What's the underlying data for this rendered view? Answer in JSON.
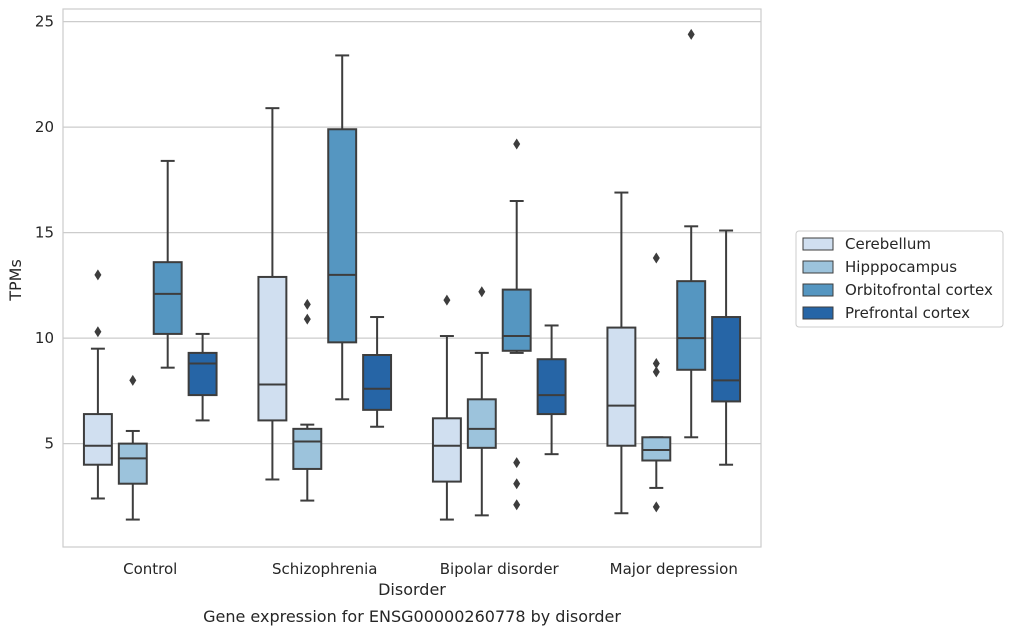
{
  "chart_data": {
    "type": "boxplot",
    "caption": "Gene expression for ENSG00000260778 by disorder",
    "xlabel": "Disorder",
    "ylabel": "TPMs",
    "ylim": [
      0.1,
      25.6
    ],
    "yticks": [
      5,
      10,
      15,
      20,
      25
    ],
    "grid": "horizontal",
    "legend_position": "right",
    "categories": [
      "Control",
      "Schizophrenia",
      "Bipolar disorder",
      "Major depression"
    ],
    "series": [
      {
        "name": "Cerebellum",
        "color": "#d0dff0",
        "boxes": [
          {
            "whisker_low": 2.4,
            "q1": 4.0,
            "median": 4.9,
            "q3": 6.4,
            "whisker_high": 9.5,
            "outliers": [
              10.3,
              13.0
            ]
          },
          {
            "whisker_low": 3.3,
            "q1": 6.1,
            "median": 7.8,
            "q3": 12.9,
            "whisker_high": 20.9,
            "outliers": []
          },
          {
            "whisker_low": 1.4,
            "q1": 3.2,
            "median": 4.9,
            "q3": 6.2,
            "whisker_high": 10.1,
            "outliers": [
              11.8
            ]
          },
          {
            "whisker_low": 1.7,
            "q1": 4.9,
            "median": 6.8,
            "q3": 10.5,
            "whisker_high": 16.9,
            "outliers": []
          }
        ]
      },
      {
        "name": "Hipppocampus",
        "color": "#9cc3dc",
        "boxes": [
          {
            "whisker_low": 1.4,
            "q1": 3.1,
            "median": 4.3,
            "q3": 5.0,
            "whisker_high": 5.6,
            "outliers": [
              8.0
            ]
          },
          {
            "whisker_low": 2.3,
            "q1": 3.8,
            "median": 5.1,
            "q3": 5.7,
            "whisker_high": 5.9,
            "outliers": [
              10.9,
              11.6
            ]
          },
          {
            "whisker_low": 1.6,
            "q1": 4.8,
            "median": 5.7,
            "q3": 7.1,
            "whisker_high": 9.3,
            "outliers": [
              12.2
            ]
          },
          {
            "whisker_low": 2.9,
            "q1": 4.2,
            "median": 4.7,
            "q3": 5.3,
            "whisker_high": 5.3,
            "outliers": [
              2.0,
              8.4,
              8.8,
              13.8
            ]
          }
        ]
      },
      {
        "name": "Orbitofrontal cortex",
        "color": "#5596c1",
        "boxes": [
          {
            "whisker_low": 8.6,
            "q1": 10.2,
            "median": 12.1,
            "q3": 13.6,
            "whisker_high": 18.4,
            "outliers": []
          },
          {
            "whisker_low": 7.1,
            "q1": 9.8,
            "median": 13.0,
            "q3": 19.9,
            "whisker_high": 23.4,
            "outliers": []
          },
          {
            "whisker_low": 9.3,
            "q1": 9.4,
            "median": 10.1,
            "q3": 12.3,
            "whisker_high": 16.5,
            "outliers": [
              2.1,
              3.1,
              4.1,
              19.2
            ]
          },
          {
            "whisker_low": 5.3,
            "q1": 8.5,
            "median": 10.0,
            "q3": 12.7,
            "whisker_high": 15.3,
            "outliers": [
              24.4
            ]
          }
        ]
      },
      {
        "name": "Prefrontal cortex",
        "color": "#2665a6",
        "boxes": [
          {
            "whisker_low": 6.1,
            "q1": 7.3,
            "median": 8.8,
            "q3": 9.3,
            "whisker_high": 10.2,
            "outliers": []
          },
          {
            "whisker_low": 5.8,
            "q1": 6.6,
            "median": 7.6,
            "q3": 9.2,
            "whisker_high": 11.0,
            "outliers": []
          },
          {
            "whisker_low": 4.5,
            "q1": 6.4,
            "median": 7.3,
            "q3": 9.0,
            "whisker_high": 10.6,
            "outliers": []
          },
          {
            "whisker_low": 4.0,
            "q1": 7.0,
            "median": 8.0,
            "q3": 11.0,
            "whisker_high": 15.1,
            "outliers": []
          }
        ]
      }
    ]
  }
}
